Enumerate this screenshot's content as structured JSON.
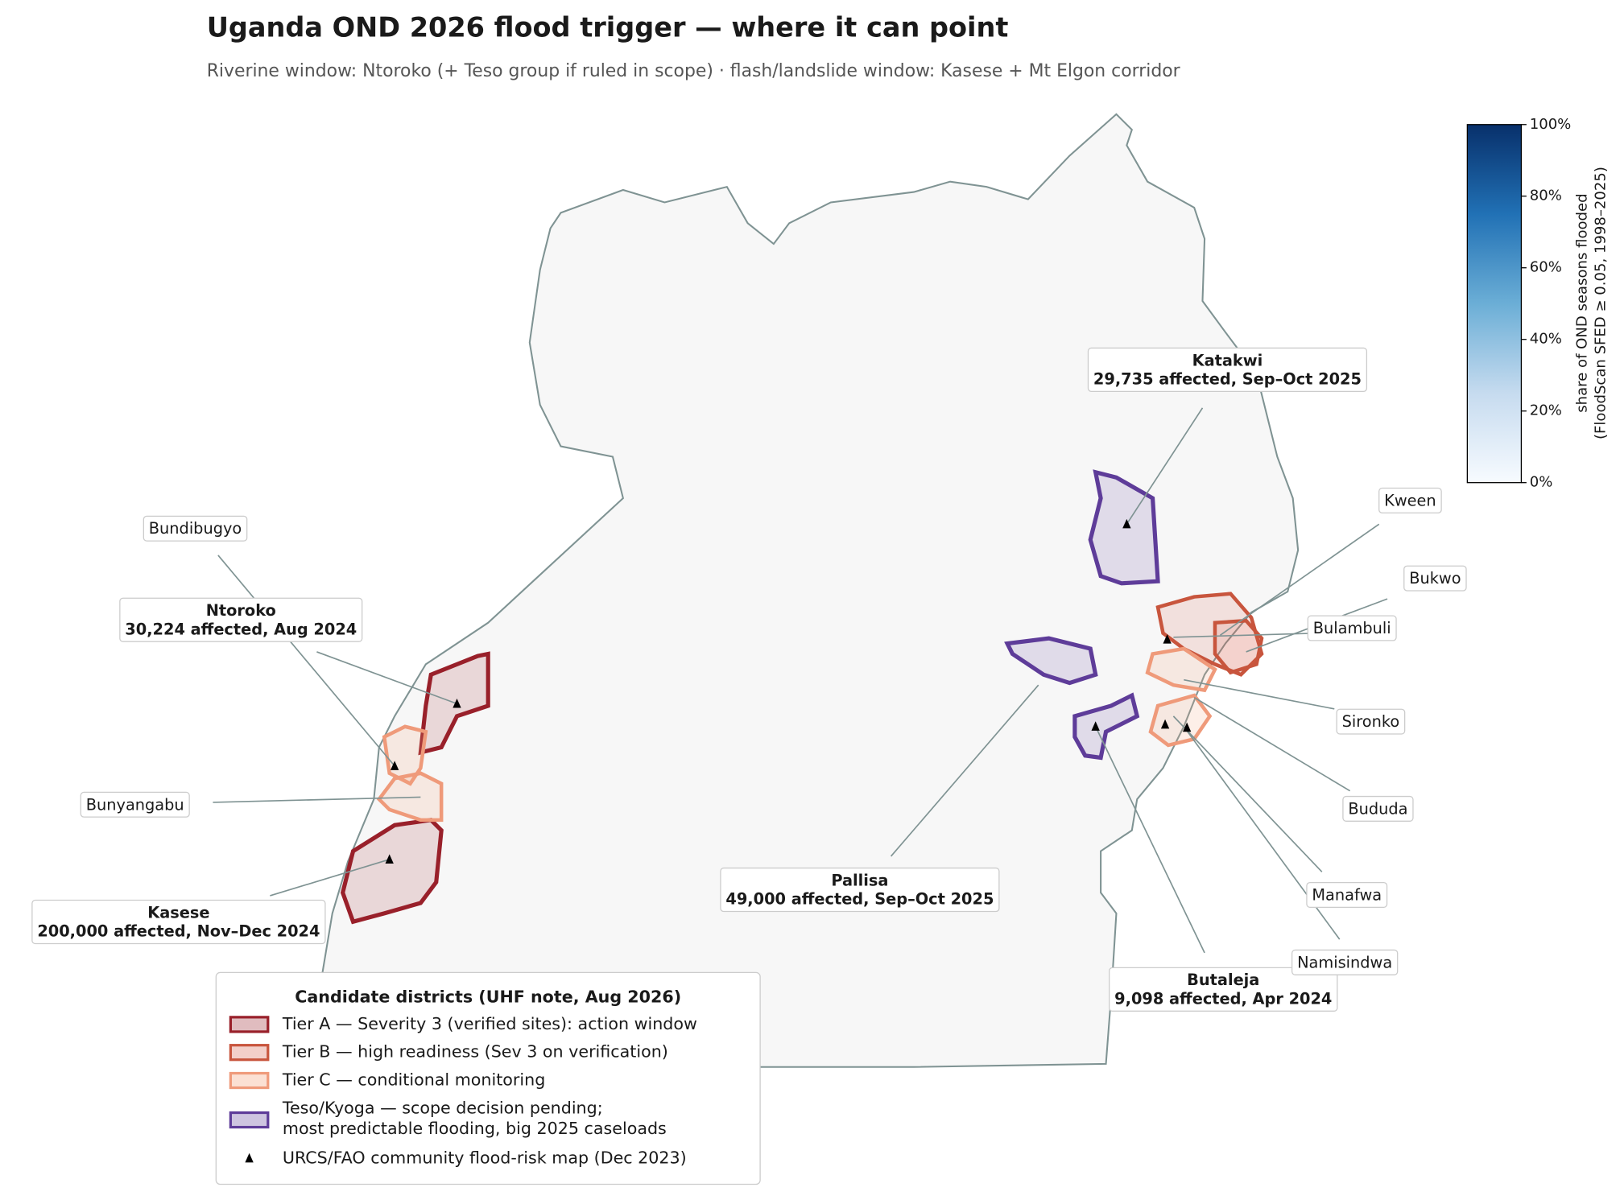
{
  "title": "Uganda OND 2026 flood trigger — where it can point",
  "subtitle": "Riverine window: Ntoroko (+ Teso group if ruled in scope) · flash/landslide window: Kasese + Mt Elgon corridor",
  "colorbar": {
    "label": [
      "share of OND seasons flooded",
      "(FloodScan SFED ≥ 0.05, 1998–2025)"
    ],
    "lim": [
      0,
      100
    ],
    "ticks": [
      {
        "value": 0,
        "label": "0%"
      },
      {
        "value": 20,
        "label": "20%"
      },
      {
        "value": 40,
        "label": "40%"
      },
      {
        "value": 60,
        "label": "60%"
      },
      {
        "value": 80,
        "label": "80%"
      },
      {
        "value": 100,
        "label": "100%"
      }
    ]
  },
  "annotations": [
    {
      "name": "Katakwi",
      "detail": "29,735 affected, Sep–Oct 2025"
    },
    {
      "name": "Bundibugyo"
    },
    {
      "name": "Ntoroko",
      "detail": "30,224 affected, Aug 2024"
    },
    {
      "name": "Bunyangabu"
    },
    {
      "name": "Kasese",
      "detail": "200,000 affected, Nov–Dec 2024"
    },
    {
      "name": "Pallisa",
      "detail": "49,000 affected, Sep–Oct 2025"
    },
    {
      "name": "Butaleja",
      "detail": "9,098 affected, Apr 2024"
    },
    {
      "name": "Kween"
    },
    {
      "name": "Bukwo"
    },
    {
      "name": "Bulambuli"
    },
    {
      "name": "Sironko"
    },
    {
      "name": "Bududa"
    },
    {
      "name": "Manafwa"
    },
    {
      "name": "Namisindwa"
    }
  ],
  "legend": {
    "title": "Candidate districts (UHF note, Aug 2026)",
    "items": [
      [
        "Tier A — Severity 3 (verified sites): action window"
      ],
      [
        "Tier B — high readiness (Sev 3 on verification)"
      ],
      [
        "Tier C — conditional monitoring"
      ],
      [
        "Teso/Kyoga — scope decision pending;",
        "most predictable flooding, big 2025 caseloads"
      ],
      [
        "URCS/FAO community flood-risk map (Dec 2023)"
      ]
    ]
  }
}
